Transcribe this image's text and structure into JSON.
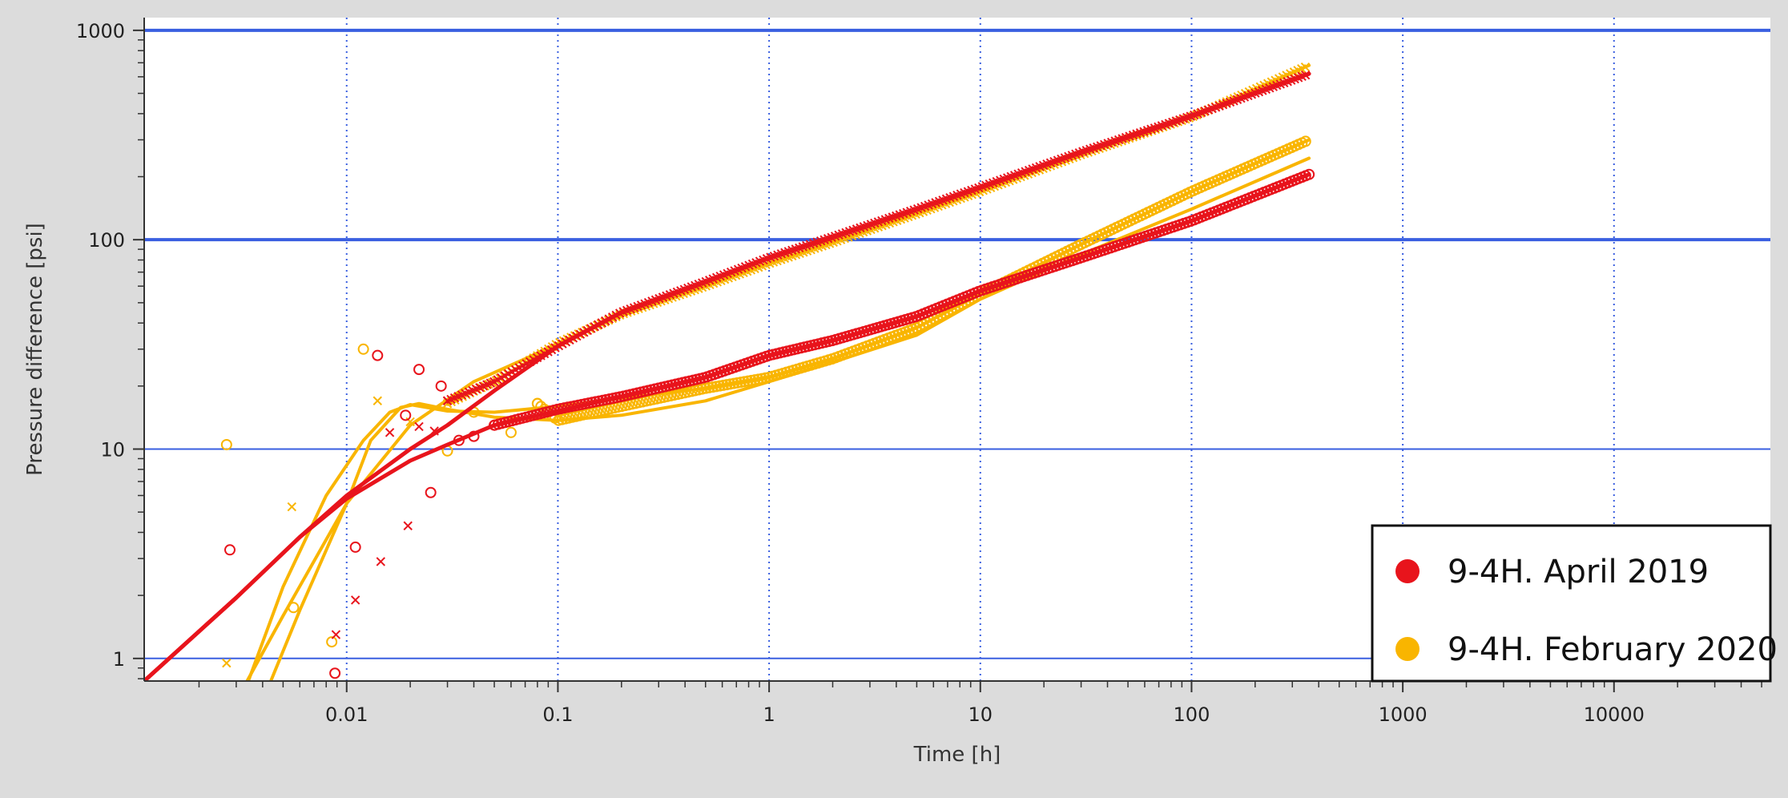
{
  "chart_data": {
    "type": "scatter",
    "title": "",
    "xlabel": "Time [h]",
    "ylabel": "Pressure difference [psi]",
    "xscale": "log",
    "yscale": "log",
    "xlim": [
      0.0011,
      55000
    ],
    "ylim": [
      0.78,
      1150
    ],
    "x_ticks": [
      {
        "value": 0.01,
        "label": "0.01"
      },
      {
        "value": 0.1,
        "label": "0.1"
      },
      {
        "value": 1,
        "label": "1"
      },
      {
        "value": 10,
        "label": "10"
      },
      {
        "value": 100,
        "label": "100"
      },
      {
        "value": 1000,
        "label": "1000"
      },
      {
        "value": 10000,
        "label": "10000"
      }
    ],
    "y_ticks": [
      {
        "value": 1,
        "label": "1"
      },
      {
        "value": 10,
        "label": "10"
      },
      {
        "value": 100,
        "label": "100"
      },
      {
        "value": 1000,
        "label": "1000"
      }
    ],
    "grid": true,
    "legend_position": "bottom-right",
    "series": [
      {
        "name": "9-4H. April 2019",
        "color": "#e8141c",
        "pressure_model": [
          [
            0.0011,
            0.78
          ],
          [
            0.003,
            1.95
          ],
          [
            0.006,
            3.8
          ],
          [
            0.01,
            6.0
          ],
          [
            0.02,
            10.0
          ],
          [
            0.03,
            13.0
          ],
          [
            0.05,
            19.0
          ],
          [
            0.1,
            31.0
          ],
          [
            0.2,
            45.0
          ],
          [
            0.5,
            63.0
          ],
          [
            1,
            82.0
          ],
          [
            2,
            103.0
          ],
          [
            5,
            140.0
          ],
          [
            10,
            178.0
          ],
          [
            30,
            262.0
          ],
          [
            100,
            390.0
          ],
          [
            360,
            620.0
          ]
        ],
        "derivative_model": [
          [
            0.0011,
            0.78
          ],
          [
            0.003,
            1.95
          ],
          [
            0.006,
            3.8
          ],
          [
            0.01,
            5.8
          ],
          [
            0.02,
            8.8
          ],
          [
            0.03,
            10.5
          ],
          [
            0.05,
            13.0
          ],
          [
            0.1,
            15.2
          ],
          [
            0.2,
            17.8
          ],
          [
            0.5,
            22.0
          ],
          [
            1,
            28.0
          ],
          [
            2,
            33.0
          ],
          [
            5,
            43.0
          ],
          [
            10,
            57.0
          ],
          [
            30,
            82.0
          ],
          [
            100,
            123.0
          ],
          [
            360,
            205.0
          ]
        ],
        "pressure_points": [
          [
            0.0089,
            1.3
          ],
          [
            0.011,
            1.9
          ],
          [
            0.0145,
            2.9
          ],
          [
            0.016,
            12.0
          ],
          [
            0.0195,
            4.3
          ],
          [
            0.022,
            12.8
          ],
          [
            0.026,
            12.2
          ],
          [
            0.03,
            17.0
          ],
          [
            0.05,
            21.0
          ],
          [
            0.1,
            31.0
          ],
          [
            0.2,
            45.0
          ],
          [
            0.5,
            63.0
          ],
          [
            1,
            82.0
          ],
          [
            2,
            103.0
          ],
          [
            5,
            140.0
          ],
          [
            10,
            178.0
          ],
          [
            30,
            262.0
          ],
          [
            100,
            390.0
          ],
          [
            360,
            620.0
          ]
        ],
        "derivative_points": [
          [
            0.0028,
            3.3
          ],
          [
            0.0088,
            0.85
          ],
          [
            0.011,
            3.4
          ],
          [
            0.014,
            28.0
          ],
          [
            0.019,
            14.5
          ],
          [
            0.022,
            24.0
          ],
          [
            0.025,
            6.2
          ],
          [
            0.028,
            20.0
          ],
          [
            0.034,
            11.0
          ],
          [
            0.04,
            11.5
          ],
          [
            0.05,
            13.0
          ],
          [
            0.1,
            15.5
          ],
          [
            0.2,
            17.8
          ],
          [
            0.5,
            22.0
          ],
          [
            1,
            28.0
          ],
          [
            2,
            33.0
          ],
          [
            5,
            43.0
          ],
          [
            10,
            57.0
          ],
          [
            30,
            82.0
          ],
          [
            100,
            123.0
          ],
          [
            360,
            205.0
          ]
        ]
      },
      {
        "name": "9-4H. February 2020",
        "color": "#f9b500",
        "pressure_model": [
          [
            0.0025,
            0.45
          ],
          [
            0.005,
            1.6
          ],
          [
            0.01,
            5.5
          ],
          [
            0.02,
            13.0
          ],
          [
            0.04,
            21.0
          ],
          [
            0.07,
            27.0
          ],
          [
            0.1,
            32.0
          ],
          [
            0.2,
            44.0
          ],
          [
            0.5,
            60.0
          ],
          [
            1,
            77.0
          ],
          [
            2,
            97.0
          ],
          [
            5,
            133.0
          ],
          [
            10,
            170.0
          ],
          [
            30,
            255.0
          ],
          [
            100,
            385.0
          ],
          [
            360,
            680.0
          ]
        ],
        "derivative_model_a": [
          [
            0.0035,
            0.45
          ],
          [
            0.006,
            1.7
          ],
          [
            0.01,
            5.5
          ],
          [
            0.013,
            11.0
          ],
          [
            0.018,
            15.8
          ],
          [
            0.022,
            16.5
          ],
          [
            0.03,
            15.5
          ],
          [
            0.05,
            14.2
          ],
          [
            0.1,
            13.7
          ],
          [
            0.2,
            14.5
          ],
          [
            0.5,
            17.0
          ],
          [
            1,
            21.0
          ],
          [
            2,
            26.0
          ],
          [
            5,
            35.0
          ],
          [
            10,
            52.0
          ],
          [
            30,
            85.0
          ],
          [
            100,
            140.0
          ],
          [
            360,
            245.0
          ]
        ],
        "derivative_model_b": [
          [
            0.0028,
            0.45
          ],
          [
            0.005,
            2.2
          ],
          [
            0.008,
            6.0
          ],
          [
            0.012,
            11.0
          ],
          [
            0.016,
            15.0
          ],
          [
            0.02,
            16.3
          ],
          [
            0.03,
            15.2
          ],
          [
            0.05,
            15.0
          ],
          [
            0.1,
            16.0
          ],
          [
            0.2,
            17.5
          ],
          [
            0.5,
            19.5
          ],
          [
            1,
            22.0
          ],
          [
            2,
            27.0
          ],
          [
            5,
            38.0
          ],
          [
            10,
            55.0
          ],
          [
            30,
            95.0
          ],
          [
            100,
            170.0
          ],
          [
            360,
            300.0
          ]
        ],
        "pressure_points": [
          [
            0.0027,
            0.95
          ],
          [
            0.0055,
            5.3
          ],
          [
            0.014,
            17.0
          ],
          [
            0.02,
            13.5
          ],
          [
            0.03,
            16.5
          ],
          [
            0.05,
            21.0
          ],
          [
            0.1,
            32.0
          ],
          [
            0.2,
            44.0
          ],
          [
            0.5,
            60.0
          ],
          [
            1,
            77.0
          ],
          [
            2,
            97.0
          ],
          [
            5,
            133.0
          ],
          [
            10,
            170.0
          ],
          [
            30,
            255.0
          ],
          [
            100,
            385.0
          ],
          [
            360,
            680.0
          ]
        ],
        "derivative_points": [
          [
            0.0027,
            10.5
          ],
          [
            0.0056,
            1.75
          ],
          [
            0.0085,
            1.2
          ],
          [
            0.012,
            30.0
          ],
          [
            0.03,
            9.8
          ],
          [
            0.04,
            15.0
          ],
          [
            0.06,
            12.0
          ],
          [
            0.08,
            16.5
          ],
          [
            0.1,
            13.7
          ],
          [
            0.2,
            16.0
          ],
          [
            0.5,
            19.5
          ],
          [
            1,
            22.0
          ],
          [
            2,
            27.0
          ],
          [
            5,
            38.0
          ],
          [
            10,
            55.0
          ],
          [
            30,
            95.0
          ],
          [
            100,
            170.0
          ],
          [
            360,
            300.0
          ]
        ]
      }
    ]
  }
}
